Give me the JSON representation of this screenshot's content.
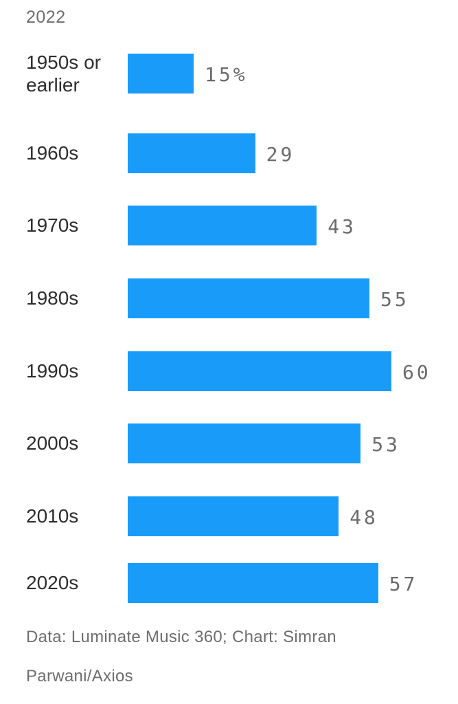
{
  "header": {
    "year_label": "2022"
  },
  "footer": {
    "line1": "Data: Luminate Music 360; Chart: Simran",
    "line2": "Parwani/Axios",
    "full_credit": "Data: Luminate Music 360; Chart: Simran Parwani/Axios"
  },
  "colors": {
    "bar": "#199bfa",
    "label": "#2d2d2d",
    "value": "#6b6b6b",
    "muted": "#6e6e6e",
    "background": "#ffffff"
  },
  "chart_data": {
    "type": "bar",
    "orientation": "horizontal",
    "title": "2022",
    "categories": [
      "1950s or earlier",
      "1960s",
      "1970s",
      "1980s",
      "1990s",
      "2000s",
      "2010s",
      "2020s"
    ],
    "values": [
      15,
      29,
      43,
      55,
      60,
      53,
      48,
      57
    ],
    "value_labels": [
      "15%",
      "29",
      "43",
      "55",
      "60",
      "53",
      "48",
      "57"
    ],
    "unit": "%",
    "xlim": [
      0,
      60
    ],
    "grid": false,
    "legend": "none",
    "value_label_position": "right-of-bar",
    "source": "Data: Luminate Music 360; Chart: Simran Parwani/Axios"
  }
}
